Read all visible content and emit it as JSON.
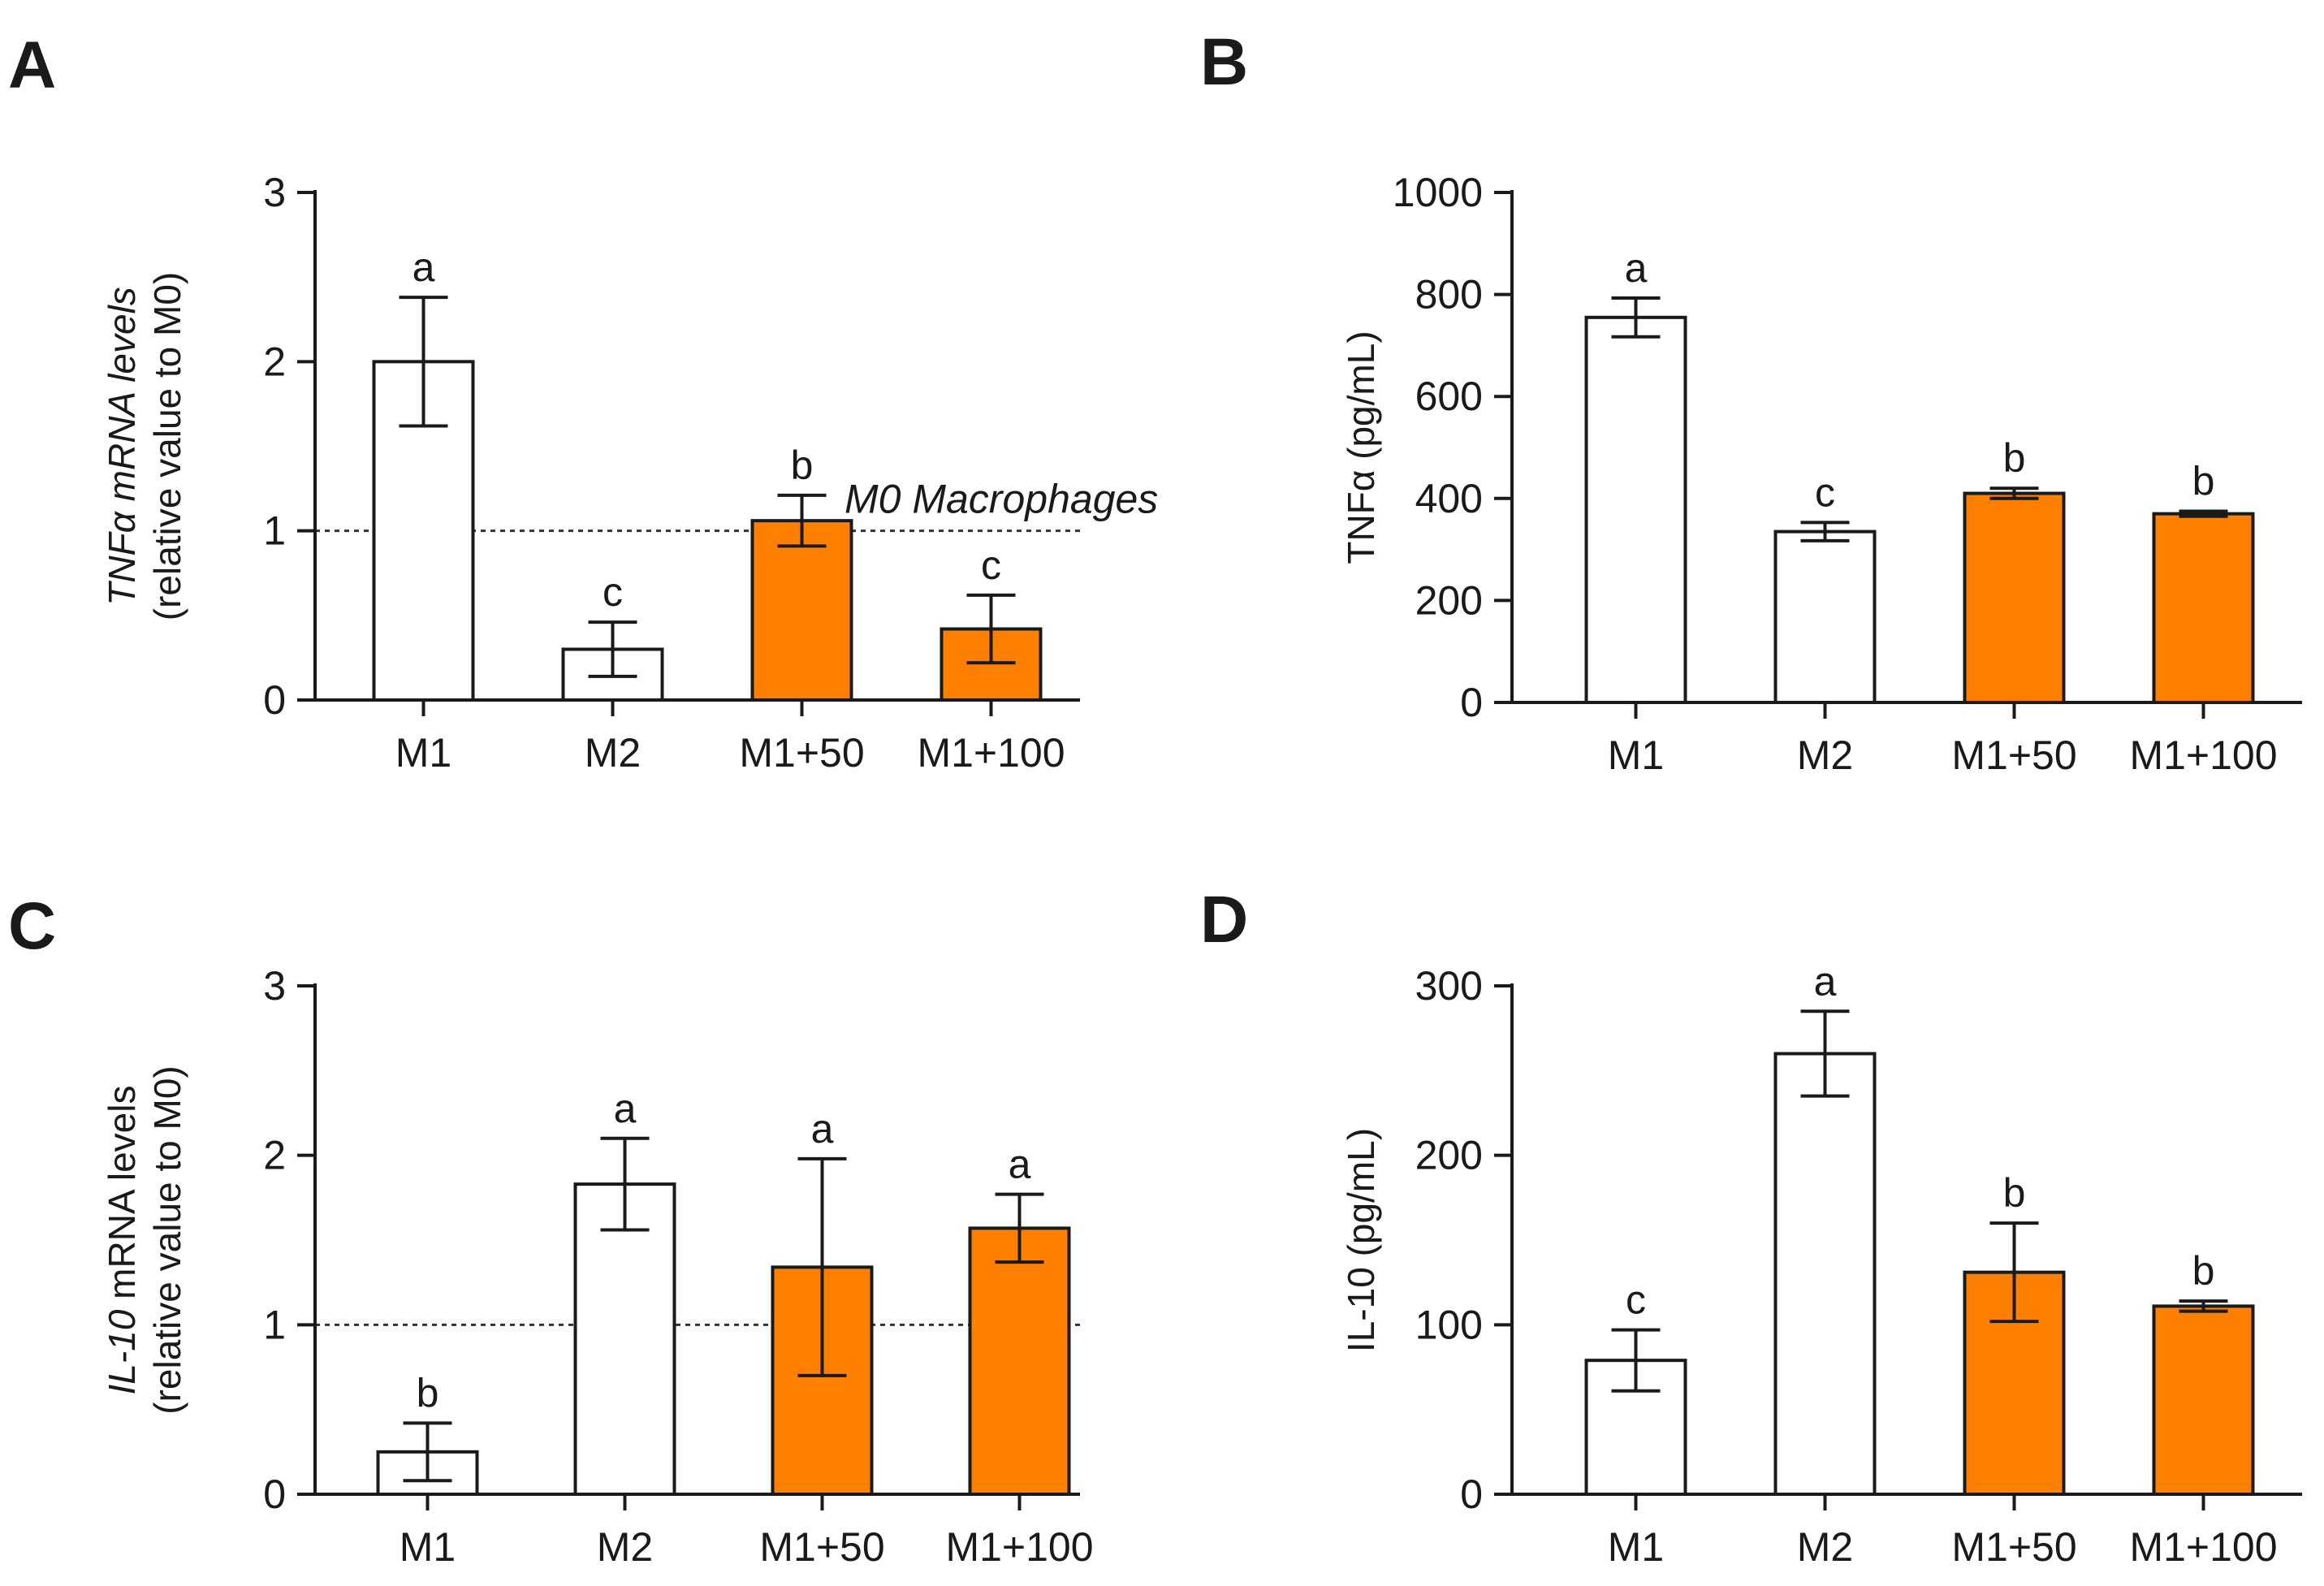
{
  "chart_data": [
    {
      "panel": "A",
      "type": "bar",
      "categories": [
        "M1",
        "M2",
        "M1+50",
        "M1+100"
      ],
      "values": [
        2.0,
        0.3,
        1.06,
        0.42
      ],
      "errors": [
        0.38,
        0.16,
        0.15,
        0.2
      ],
      "significance": [
        "a",
        "c",
        "b",
        "c"
      ],
      "bar_colors": [
        "#ffffff",
        "#ffffff",
        "#ff7f00",
        "#ff7f00"
      ],
      "ylim": [
        0,
        3
      ],
      "yticks": [
        0,
        1,
        2,
        3
      ],
      "ylabel_line1_italic": "TNFα mRNA levels",
      "ylabel_line1_plain": "",
      "ylabel_line2": "(relative value to M0)",
      "reference_line": {
        "value": 1,
        "label": "M0 Macrophages"
      }
    },
    {
      "panel": "B",
      "type": "bar",
      "categories": [
        "M1",
        "M2",
        "M1+50",
        "M1+100"
      ],
      "values": [
        755,
        335,
        410,
        370
      ],
      "errors": [
        38,
        18,
        10,
        5
      ],
      "significance": [
        "a",
        "c",
        "b",
        "b"
      ],
      "bar_colors": [
        "#ffffff",
        "#ffffff",
        "#ff7f00",
        "#ff7f00"
      ],
      "ylim": [
        0,
        1000
      ],
      "yticks": [
        0,
        200,
        400,
        600,
        800,
        1000
      ],
      "ylabel_line1_italic": "",
      "ylabel_line1_plain": "TNFα (pg/mL)",
      "ylabel_line2": ""
    },
    {
      "panel": "C",
      "type": "bar",
      "categories": [
        "M1",
        "M2",
        "M1+50",
        "M1+100"
      ],
      "values": [
        0.25,
        1.83,
        1.34,
        1.57
      ],
      "errors": [
        0.17,
        0.27,
        0.64,
        0.2
      ],
      "significance": [
        "b",
        "a",
        "a",
        "a"
      ],
      "bar_colors": [
        "#ffffff",
        "#ffffff",
        "#ff7f00",
        "#ff7f00"
      ],
      "ylim": [
        0,
        3
      ],
      "yticks": [
        0,
        1,
        2,
        3
      ],
      "ylabel_line1_italic": "IL-10",
      "ylabel_line1_plain": " mRNA levels",
      "ylabel_line2": "(relative value to M0)",
      "reference_line": {
        "value": 1,
        "label": ""
      }
    },
    {
      "panel": "D",
      "type": "bar",
      "categories": [
        "M1",
        "M2",
        "M1+50",
        "M1+100"
      ],
      "values": [
        79,
        260,
        131,
        111
      ],
      "errors": [
        18,
        25,
        29,
        3
      ],
      "significance": [
        "c",
        "a",
        "b",
        "b"
      ],
      "bar_colors": [
        "#ffffff",
        "#ffffff",
        "#ff7f00",
        "#ff7f00"
      ],
      "ylim": [
        0,
        300
      ],
      "yticks": [
        0,
        100,
        200,
        300
      ],
      "ylabel_line1_italic": "",
      "ylabel_line1_plain": "IL-10 (pg/mL)",
      "ylabel_line2": ""
    }
  ]
}
